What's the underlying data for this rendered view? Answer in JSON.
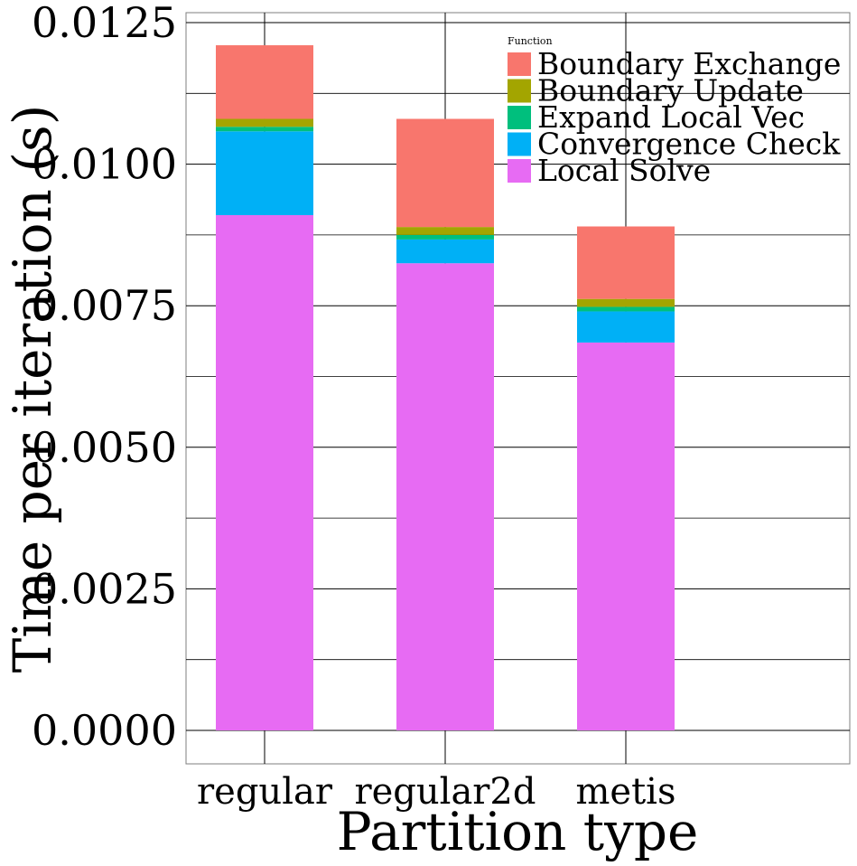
{
  "chart_data": {
    "type": "bar",
    "stacked": true,
    "categories": [
      "regular",
      "regular2d",
      "metis"
    ],
    "series": [
      {
        "name": "Local Solve",
        "color": "#E76BF3",
        "values": [
          0.0091,
          0.00825,
          0.00685
        ]
      },
      {
        "name": "Convergence Check",
        "color": "#00B0F6",
        "values": [
          0.00148,
          0.00042,
          0.00055
        ]
      },
      {
        "name": "Expand Local Vec",
        "color": "#00BF7D",
        "values": [
          8e-05,
          8e-05,
          8e-05
        ]
      },
      {
        "name": "Boundary Update",
        "color": "#A3A500",
        "values": [
          0.00014,
          0.00014,
          0.00014
        ]
      },
      {
        "name": "Boundary Exchange",
        "color": "#F8766D",
        "values": [
          0.0013,
          0.00191,
          0.00128
        ]
      }
    ],
    "legend_order": [
      "Boundary Exchange",
      "Boundary Update",
      "Expand Local Vec",
      "Convergence Check",
      "Local Solve"
    ],
    "legend_title": "Function",
    "legend_position": "top-right",
    "xlabel": "Partition type",
    "ylabel": "Time per iteration (s)",
    "ylim": [
      -0.0006,
      0.01275
    ],
    "yticks": [
      "0.0000",
      "0.0025",
      "0.0050",
      "0.0075",
      "0.0100",
      "0.0125"
    ],
    "grid": true
  }
}
